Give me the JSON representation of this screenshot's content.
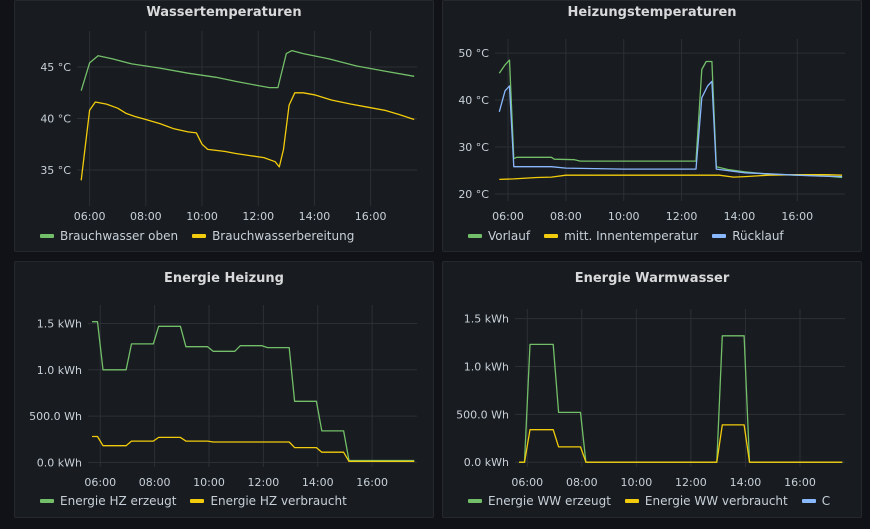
{
  "colors": {
    "green": "#73bf69",
    "yellow": "#f2cc0c",
    "blue": "#8ab8ff"
  },
  "panels": [
    {
      "title": "Wassertemperaturen",
      "legend": [
        {
          "label": "Brauchwasser oben",
          "color": "#73bf69"
        },
        {
          "label": "Brauchwasserbereitung",
          "color": "#f2cc0c"
        }
      ]
    },
    {
      "title": "Heizungstemperaturen",
      "legend": [
        {
          "label": "Vorlauf",
          "color": "#73bf69"
        },
        {
          "label": "mitt. Innentemperatur",
          "color": "#f2cc0c"
        },
        {
          "label": "Rücklauf",
          "color": "#8ab8ff"
        }
      ]
    },
    {
      "title": "Energie Heizung",
      "legend": [
        {
          "label": "Energie HZ erzeugt",
          "color": "#73bf69"
        },
        {
          "label": "Energie HZ verbraucht",
          "color": "#f2cc0c"
        }
      ]
    },
    {
      "title": "Energie Warmwasser",
      "legend": [
        {
          "label": "Energie WW erzeugt",
          "color": "#73bf69"
        },
        {
          "label": "Energie WW verbraucht",
          "color": "#f2cc0c"
        },
        {
          "label": "C",
          "color": "#8ab8ff"
        }
      ]
    }
  ],
  "chart_data": [
    {
      "type": "line",
      "title": "Wassertemperaturen",
      "xlim": [
        5.55,
        17.65
      ],
      "ylim": [
        31.5,
        48.5
      ],
      "xticks": [
        {
          "v": 6,
          "label": "06:00"
        },
        {
          "v": 8,
          "label": "08:00"
        },
        {
          "v": 10,
          "label": "10:00"
        },
        {
          "v": 12,
          "label": "12:00"
        },
        {
          "v": 14,
          "label": "14:00"
        },
        {
          "v": 16,
          "label": "16:00"
        }
      ],
      "yticks": [
        {
          "v": 35,
          "label": "35 °C"
        },
        {
          "v": 40,
          "label": "40 °C"
        },
        {
          "v": 45,
          "label": "45 °C"
        }
      ],
      "series": [
        {
          "name": "Brauchwasser oben",
          "color": "#73bf69",
          "step": false,
          "points": [
            [
              5.7,
              42.7
            ],
            [
              6.0,
              45.4
            ],
            [
              6.3,
              46.1
            ],
            [
              6.8,
              45.8
            ],
            [
              7.5,
              45.3
            ],
            [
              8.5,
              44.9
            ],
            [
              9.5,
              44.4
            ],
            [
              10.5,
              44.0
            ],
            [
              11.2,
              43.6
            ],
            [
              12.0,
              43.2
            ],
            [
              12.4,
              43.0
            ],
            [
              12.7,
              43.0
            ],
            [
              13.0,
              46.3
            ],
            [
              13.2,
              46.6
            ],
            [
              13.6,
              46.3
            ],
            [
              14.5,
              45.8
            ],
            [
              15.5,
              45.1
            ],
            [
              16.5,
              44.6
            ],
            [
              17.55,
              44.1
            ]
          ]
        },
        {
          "name": "Brauchwasserbereitung",
          "color": "#f2cc0c",
          "step": false,
          "points": [
            [
              5.7,
              34.0
            ],
            [
              6.0,
              40.8
            ],
            [
              6.2,
              41.6
            ],
            [
              6.6,
              41.4
            ],
            [
              7.0,
              41.0
            ],
            [
              7.3,
              40.5
            ],
            [
              7.6,
              40.2
            ],
            [
              8.0,
              39.9
            ],
            [
              8.5,
              39.5
            ],
            [
              9.0,
              39.0
            ],
            [
              9.5,
              38.7
            ],
            [
              9.8,
              38.6
            ],
            [
              10.0,
              37.5
            ],
            [
              10.2,
              37.0
            ],
            [
              10.8,
              36.8
            ],
            [
              11.2,
              36.6
            ],
            [
              11.7,
              36.4
            ],
            [
              12.2,
              36.2
            ],
            [
              12.6,
              35.8
            ],
            [
              12.75,
              35.3
            ],
            [
              12.9,
              37.0
            ],
            [
              13.1,
              41.3
            ],
            [
              13.3,
              42.5
            ],
            [
              13.6,
              42.5
            ],
            [
              14.0,
              42.3
            ],
            [
              14.6,
              41.8
            ],
            [
              15.3,
              41.4
            ],
            [
              15.9,
              41.1
            ],
            [
              16.5,
              40.8
            ],
            [
              17.0,
              40.4
            ],
            [
              17.55,
              39.9
            ]
          ]
        }
      ]
    },
    {
      "type": "line",
      "title": "Heizungstemperaturen",
      "xlim": [
        5.55,
        17.65
      ],
      "ylim": [
        18.5,
        53
      ],
      "xticks": [
        {
          "v": 6,
          "label": "06:00"
        },
        {
          "v": 8,
          "label": "08:00"
        },
        {
          "v": 10,
          "label": "10:00"
        },
        {
          "v": 12,
          "label": "12:00"
        },
        {
          "v": 14,
          "label": "14:00"
        },
        {
          "v": 16,
          "label": "16:00"
        }
      ],
      "yticks": [
        {
          "v": 20,
          "label": "20 °C"
        },
        {
          "v": 30,
          "label": "30 °C"
        },
        {
          "v": 40,
          "label": "40 °C"
        },
        {
          "v": 50,
          "label": "50 °C"
        }
      ],
      "series": [
        {
          "name": "Vorlauf",
          "color": "#73bf69",
          "step": false,
          "points": [
            [
              5.7,
              45.7
            ],
            [
              5.9,
              47.5
            ],
            [
              6.05,
              48.5
            ],
            [
              6.2,
              27.5
            ],
            [
              6.3,
              27.8
            ],
            [
              7.5,
              27.8
            ],
            [
              7.6,
              27.4
            ],
            [
              8.3,
              27.3
            ],
            [
              8.5,
              27.0
            ],
            [
              12.5,
              27.0
            ],
            [
              12.7,
              46.5
            ],
            [
              12.85,
              48.2
            ],
            [
              13.05,
              48.2
            ],
            [
              13.2,
              25.8
            ],
            [
              13.6,
              25.2
            ],
            [
              14.2,
              24.7
            ],
            [
              15.0,
              24.2
            ],
            [
              16.0,
              24.0
            ],
            [
              16.8,
              23.9
            ],
            [
              17.55,
              23.5
            ]
          ]
        },
        {
          "name": "mitt. Innentemperatur",
          "color": "#f2cc0c",
          "step": false,
          "points": [
            [
              5.7,
              23.1
            ],
            [
              6.2,
              23.2
            ],
            [
              7.0,
              23.5
            ],
            [
              7.5,
              23.6
            ],
            [
              8.0,
              24.0
            ],
            [
              11.0,
              24.0
            ],
            [
              12.8,
              24.0
            ],
            [
              13.3,
              24.0
            ],
            [
              13.8,
              23.6
            ],
            [
              14.2,
              23.7
            ],
            [
              15.0,
              24.0
            ],
            [
              16.0,
              24.1
            ],
            [
              17.0,
              24.1
            ],
            [
              17.55,
              24.0
            ]
          ]
        },
        {
          "name": "Rücklauf",
          "color": "#8ab8ff",
          "step": false,
          "points": [
            [
              5.7,
              37.5
            ],
            [
              5.9,
              42.0
            ],
            [
              6.05,
              43.0
            ],
            [
              6.2,
              25.8
            ],
            [
              7.5,
              25.8
            ],
            [
              8.0,
              25.5
            ],
            [
              10.0,
              25.3
            ],
            [
              11.5,
              25.3
            ],
            [
              12.5,
              25.3
            ],
            [
              12.7,
              40.5
            ],
            [
              12.9,
              43.0
            ],
            [
              13.05,
              44.0
            ],
            [
              13.2,
              25.3
            ],
            [
              14.2,
              24.5
            ],
            [
              15.0,
              24.3
            ],
            [
              16.0,
              24.0
            ],
            [
              16.8,
              23.8
            ],
            [
              17.55,
              23.7
            ]
          ]
        }
      ]
    },
    {
      "type": "line",
      "title": "Energie Heizung",
      "xlim": [
        5.55,
        17.65
      ],
      "ylim": [
        -50,
        1700
      ],
      "xticks": [
        {
          "v": 6,
          "label": "06:00"
        },
        {
          "v": 8,
          "label": "08:00"
        },
        {
          "v": 10,
          "label": "10:00"
        },
        {
          "v": 12,
          "label": "12:00"
        },
        {
          "v": 14,
          "label": "14:00"
        },
        {
          "v": 16,
          "label": "16:00"
        }
      ],
      "yticks": [
        {
          "v": 0,
          "label": "0.0 kWh"
        },
        {
          "v": 500,
          "label": "500.0 Wh"
        },
        {
          "v": 1000,
          "label": "1.0 kWh"
        },
        {
          "v": 1500,
          "label": "1.5 kWh"
        }
      ],
      "series": [
        {
          "name": "Energie HZ erzeugt",
          "color": "#73bf69",
          "step": true,
          "points": [
            [
              5.7,
              1520
            ],
            [
              5.9,
              1520
            ],
            [
              6.1,
              1000
            ],
            [
              6.95,
              1000
            ],
            [
              7.15,
              1280
            ],
            [
              7.95,
              1280
            ],
            [
              8.15,
              1470
            ],
            [
              8.95,
              1470
            ],
            [
              9.15,
              1250
            ],
            [
              9.95,
              1250
            ],
            [
              10.15,
              1200
            ],
            [
              10.95,
              1200
            ],
            [
              11.15,
              1260
            ],
            [
              11.95,
              1260
            ],
            [
              12.15,
              1240
            ],
            [
              12.95,
              1240
            ],
            [
              13.15,
              660
            ],
            [
              13.95,
              660
            ],
            [
              14.15,
              340
            ],
            [
              14.95,
              340
            ],
            [
              15.15,
              20
            ],
            [
              17.55,
              20
            ]
          ]
        },
        {
          "name": "Energie HZ verbraucht",
          "color": "#f2cc0c",
          "step": true,
          "points": [
            [
              5.7,
              280
            ],
            [
              5.9,
              280
            ],
            [
              6.1,
              180
            ],
            [
              6.95,
              180
            ],
            [
              7.15,
              230
            ],
            [
              7.95,
              230
            ],
            [
              8.15,
              270
            ],
            [
              8.95,
              270
            ],
            [
              9.15,
              230
            ],
            [
              9.95,
              230
            ],
            [
              10.15,
              220
            ],
            [
              12.95,
              220
            ],
            [
              13.15,
              160
            ],
            [
              13.95,
              160
            ],
            [
              14.15,
              110
            ],
            [
              14.95,
              110
            ],
            [
              15.15,
              10
            ],
            [
              17.55,
              10
            ]
          ]
        }
      ]
    },
    {
      "type": "line",
      "title": "Energie Warmwasser",
      "xlim": [
        5.55,
        17.65
      ],
      "ylim": [
        -50,
        1600
      ],
      "xticks": [
        {
          "v": 6,
          "label": "06:00"
        },
        {
          "v": 8,
          "label": "08:00"
        },
        {
          "v": 10,
          "label": "10:00"
        },
        {
          "v": 12,
          "label": "12:00"
        },
        {
          "v": 14,
          "label": "14:00"
        },
        {
          "v": 16,
          "label": "16:00"
        }
      ],
      "yticks": [
        {
          "v": 0,
          "label": "0.0 kWh"
        },
        {
          "v": 500,
          "label": "500.0 Wh"
        },
        {
          "v": 1000,
          "label": "1.0 kWh"
        },
        {
          "v": 1500,
          "label": "1.5 kWh"
        }
      ],
      "series": [
        {
          "name": "Energie WW erzeugt",
          "color": "#73bf69",
          "step": true,
          "points": [
            [
              5.7,
              0
            ],
            [
              5.9,
              0
            ],
            [
              6.1,
              1230
            ],
            [
              6.95,
              1230
            ],
            [
              7.15,
              520
            ],
            [
              7.95,
              520
            ],
            [
              8.15,
              0
            ],
            [
              12.95,
              0
            ],
            [
              13.15,
              1320
            ],
            [
              13.95,
              1320
            ],
            [
              14.15,
              0
            ],
            [
              17.55,
              0
            ]
          ]
        },
        {
          "name": "Energie WW verbraucht",
          "color": "#f2cc0c",
          "step": true,
          "points": [
            [
              5.7,
              0
            ],
            [
              5.9,
              0
            ],
            [
              6.1,
              340
            ],
            [
              6.95,
              340
            ],
            [
              7.15,
              160
            ],
            [
              7.95,
              160
            ],
            [
              8.15,
              0
            ],
            [
              12.95,
              0
            ],
            [
              13.15,
              390
            ],
            [
              13.95,
              390
            ],
            [
              14.15,
              0
            ],
            [
              17.55,
              0
            ]
          ]
        }
      ]
    }
  ]
}
